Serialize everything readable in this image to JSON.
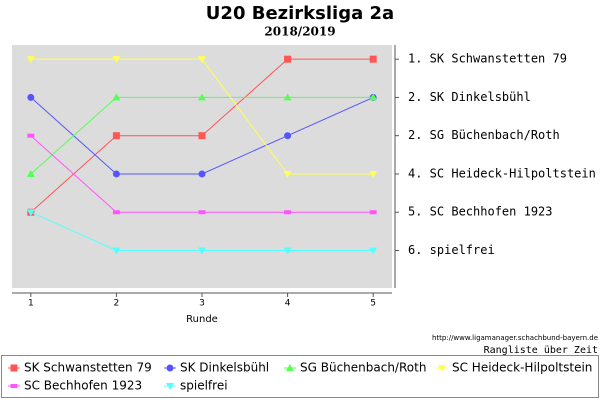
{
  "chart_data": {
    "type": "line",
    "title": "U20 Bezirksliga 2a",
    "subtitle": "2018/2019",
    "x_label": "Runde",
    "x": [
      1,
      2,
      3,
      4,
      5
    ],
    "xlim": [
      0.78,
      5.22
    ],
    "xticks": [
      1,
      2,
      3,
      4,
      5
    ],
    "ylim": [
      6.98,
      0.63
    ],
    "yticks": [
      1,
      2,
      3,
      4,
      5,
      6
    ],
    "right_labels": [
      "1. SK Schwanstetten 79",
      "2. SK Dinkelsbühl",
      "2. SG Büchenbach/Roth",
      "4. SC Heideck-Hilpoltstein",
      "5. SC Bechhofen 1923",
      "6. spielfrei"
    ],
    "footer_url": "http://www.ligamanager.schachbund-bayern.de",
    "footer_caption": "Rangliste über Zeit",
    "series": [
      {
        "name": "SK Schwanstetten 79",
        "color": "#ff5555",
        "marker": "square",
        "values": [
          5,
          3,
          3,
          1,
          1
        ]
      },
      {
        "name": "SK Dinkelsbühl",
        "color": "#5555ff",
        "marker": "circle",
        "values": [
          2,
          4,
          4,
          3,
          2
        ]
      },
      {
        "name": "SG Büchenbach/Roth",
        "color": "#55ff55",
        "marker": "triangle-up",
        "values": [
          4,
          2,
          2,
          2,
          2
        ]
      },
      {
        "name": "SC Heideck-Hilpoltstein",
        "color": "#ffff55",
        "marker": "triangle-down",
        "values": [
          1,
          1,
          1,
          4,
          4
        ]
      },
      {
        "name": "SC Bechhofen 1923",
        "color": "#ff55ff",
        "marker": "rect",
        "values": [
          3,
          5,
          5,
          5,
          5
        ]
      },
      {
        "name": "spielfrei",
        "color": "#55ffff",
        "marker": "triangle-down",
        "values": [
          5,
          6,
          6,
          6,
          6
        ]
      }
    ]
  }
}
